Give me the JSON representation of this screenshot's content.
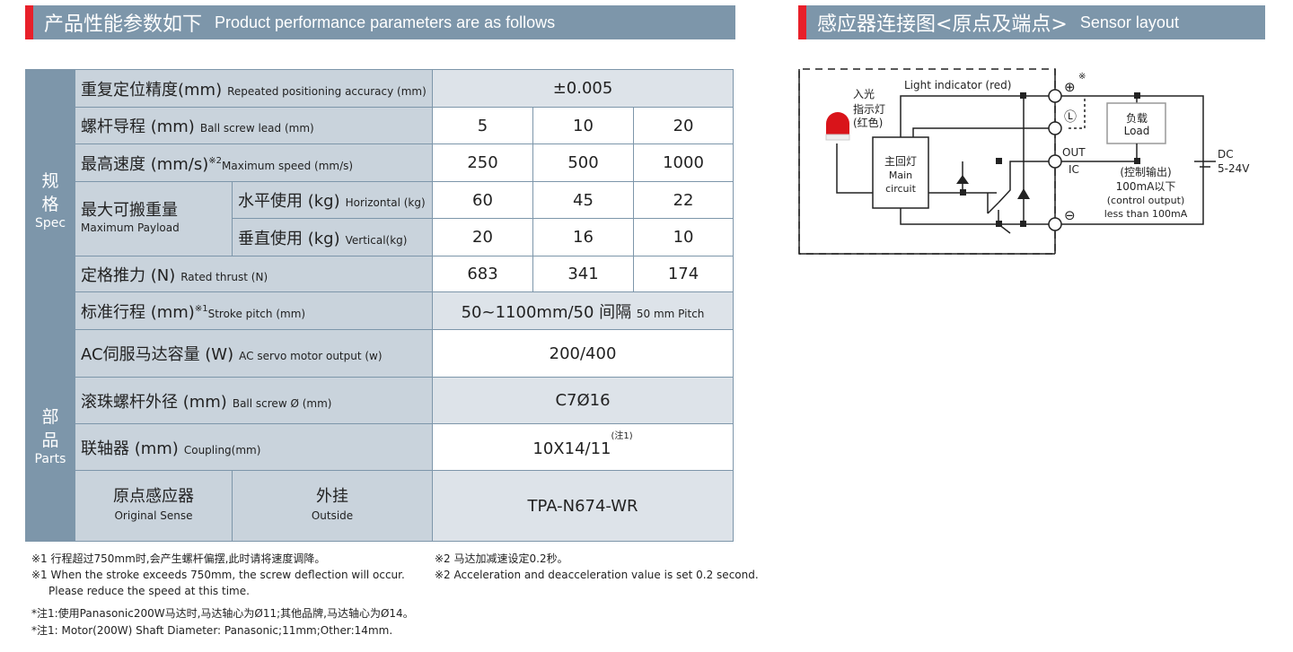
{
  "left_header": {
    "cn": "产品性能参数如下",
    "en": "Product performance parameters are as follows"
  },
  "right_header": {
    "cn": "感应器连接图<原点及端点>",
    "en": "Sensor layout"
  },
  "table": {
    "spec_group": {
      "cn1": "规",
      "cn2": "格",
      "en": "Spec"
    },
    "parts_group": {
      "cn1": "部",
      "cn2": "品",
      "en": "Parts"
    },
    "rows": [
      {
        "cn": "重复定位精度(mm)",
        "en": "Repeated positioning accuracy (mm)",
        "values": [
          "±0.005"
        ]
      },
      {
        "cn": "螺杆导程 (mm)",
        "en": "Ball screw lead (mm)",
        "values": [
          "5",
          "10",
          "20"
        ]
      },
      {
        "cn": "最高速度 (mm/s)",
        "mark": "※2",
        "en": "Maximum speed (mm/s)",
        "values": [
          "250",
          "500",
          "1000"
        ]
      },
      {
        "cn": "水平使用 (kg)",
        "en": "Horizontal (kg)",
        "values": [
          "60",
          "45",
          "22"
        ]
      },
      {
        "cn": "垂直使用 (kg)",
        "en": "Vertical(kg)",
        "values": [
          "20",
          "16",
          "10"
        ]
      },
      {
        "cn": "定格推力 (N)",
        "en": "Rated thrust (N)",
        "values": [
          "683",
          "341",
          "174"
        ]
      },
      {
        "cn": "标准行程 (mm)",
        "mark": "※1",
        "en": "Stroke pitch (mm)",
        "values": [
          "50~1100mm/50 间隔"
        ],
        "value_small": "50 mm Pitch"
      },
      {
        "cn": "AC伺服马达容量 (W)",
        "en": "AC servo motor output (w)",
        "values": [
          "200/400"
        ]
      },
      {
        "cn": "滚珠螺杆外径 (mm)",
        "en": "Ball screw Ø (mm)",
        "values": [
          "C7Ø16"
        ]
      },
      {
        "cn": "联轴器 (mm)",
        "en": "Coupling(mm)",
        "values": [
          "10X14/11"
        ],
        "value_mark": "(注1)"
      }
    ],
    "payload": {
      "cn": "最大可搬重量",
      "en": "Maximum  Payload"
    },
    "sensor": {
      "cn": "原点感应器",
      "en": "Original Sense",
      "type_cn": "外挂",
      "type_en": "Outside",
      "value": "TPA-N674-WR"
    }
  },
  "notes": {
    "n1_cn": "※1 行程超过750mm时,会产生螺杆偏摆,此时请将速度调降。",
    "n1_en": "※1 When the stroke exceeds 750mm, the screw deflection will occur.",
    "n1_en2": "Please reduce the speed at this time.",
    "n2_cn": "※2 马达加减速设定0.2秒。",
    "n2_en": "※2 Acceleration and deacceleration value is set 0.2 second.",
    "z1_cn": "*注1:使用Panasonic200W马达时,马达轴心为Ø11;其他品牌,马达轴心为Ø14。",
    "z1_en": "*注1: Motor(200W) Shaft Diameter: Panasonic;11mm;Other:14mm."
  },
  "diagram": {
    "light_indicator": "Light indicator (red)",
    "in_light": "入光",
    "indicator_cn": "指示灯",
    "red_cn": "(红色)",
    "main_cn": "主回灯",
    "main_en1": "Main",
    "main_en2": "circuit",
    "load_cn": "负载",
    "load_en": "Load",
    "plus": "⊕",
    "note_mark": "※",
    "l": "Ⓛ",
    "out": "OUT",
    "ic": "IC",
    "minus": "⊖",
    "ctrl_cn": "(控制输出)",
    "ctrl_cn2": "100mA以下",
    "ctrl_en": "(control output)",
    "ctrl_en2": "less than 100mA",
    "dc": "DC",
    "voltage": "5-24V"
  }
}
